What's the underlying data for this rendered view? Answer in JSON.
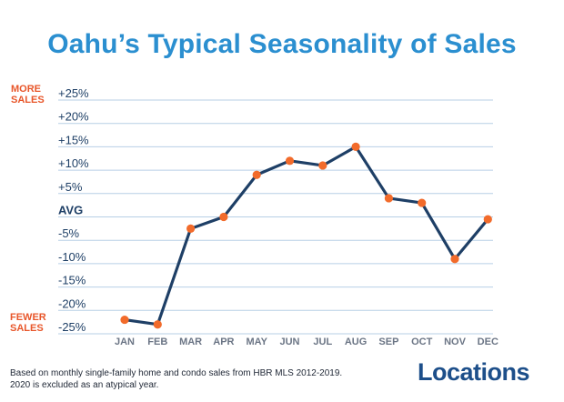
{
  "title": "Oahu’s Typical Seasonality of Sales",
  "footnote": {
    "line1": "Based on monthly single-family home and condo sales from HBR MLS 2012-2019.",
    "line2": "2020 is excluded as an atypical year."
  },
  "logo": {
    "text": "Locations"
  },
  "colors": {
    "title": "#2b8fd0",
    "line": "#1e3f66",
    "marker": "#f26b2b",
    "side_label": "#e8562a",
    "axis_text": "#1e3f66",
    "grid": "#b7cfe6",
    "logo": "#1d4f8a"
  },
  "chart_data": {
    "type": "line",
    "title": "Oahu’s Typical Seasonality of Sales",
    "categories": [
      "JAN",
      "FEB",
      "MAR",
      "APR",
      "MAY",
      "JUN",
      "JUL",
      "AUG",
      "SEP",
      "OCT",
      "NOV",
      "DEC"
    ],
    "series": [
      {
        "values": [
          -22,
          -23,
          -2.5,
          0,
          9,
          12,
          11,
          15,
          4,
          3,
          -9,
          -0.5
        ]
      }
    ],
    "y_ticks": [
      {
        "value": 25,
        "label": "+25%"
      },
      {
        "value": 20,
        "label": "+20%"
      },
      {
        "value": 15,
        "label": "+15%"
      },
      {
        "value": 10,
        "label": "+10%"
      },
      {
        "value": 5,
        "label": "+5%"
      },
      {
        "value": 0,
        "label": "AVG"
      },
      {
        "value": -5,
        "label": "-5%"
      },
      {
        "value": -10,
        "label": "-10%"
      },
      {
        "value": -15,
        "label": "-15%"
      },
      {
        "value": -20,
        "label": "-20%"
      },
      {
        "value": -25,
        "label": "-25%"
      }
    ],
    "ylim": [
      -25,
      25
    ],
    "side_labels": {
      "top": [
        "MORE",
        "SALES"
      ],
      "bottom": [
        "FEWER",
        "SALES"
      ]
    },
    "grid": true
  }
}
